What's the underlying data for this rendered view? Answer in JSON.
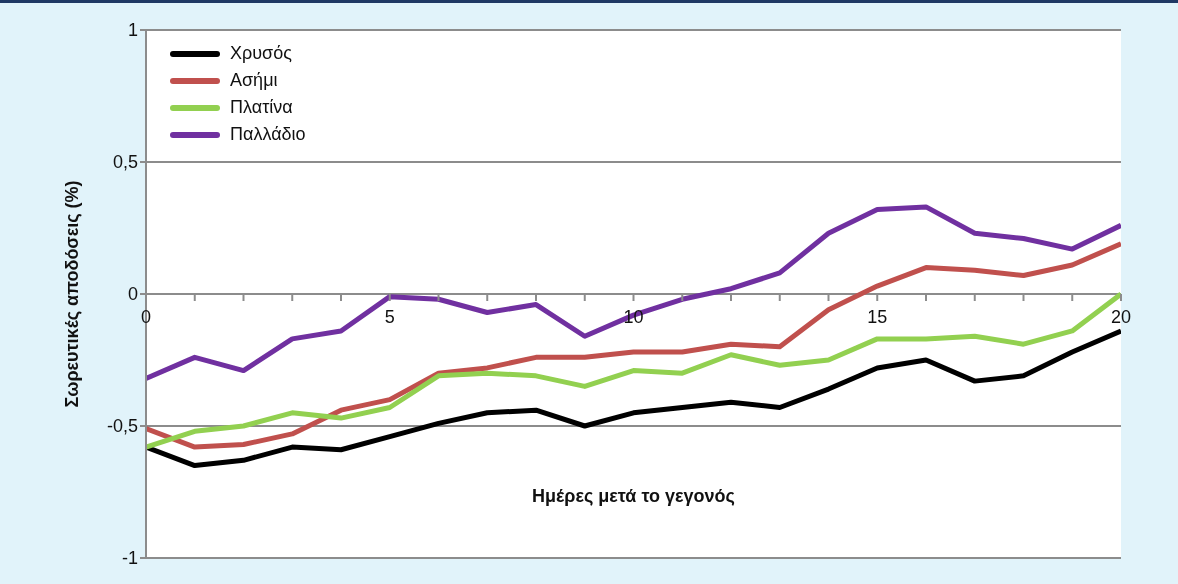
{
  "chart_data": {
    "type": "line",
    "xlabel": "Ημέρες μετά το γεγονός",
    "ylabel": "Σωρευτικές αποδόσεις (%)",
    "x": [
      0,
      1,
      2,
      3,
      4,
      5,
      6,
      7,
      8,
      9,
      10,
      11,
      12,
      13,
      14,
      15,
      16,
      17,
      18,
      19,
      20
    ],
    "series": [
      {
        "name": "Χρυσός",
        "color": "#000000",
        "values": [
          -0.58,
          -0.65,
          -0.63,
          -0.58,
          -0.59,
          -0.54,
          -0.49,
          -0.45,
          -0.44,
          -0.5,
          -0.45,
          -0.43,
          -0.41,
          -0.43,
          -0.36,
          -0.28,
          -0.25,
          -0.33,
          -0.31,
          -0.22,
          -0.14
        ]
      },
      {
        "name": "Ασήμι",
        "color": "#c0504d",
        "values": [
          -0.51,
          -0.58,
          -0.57,
          -0.53,
          -0.44,
          -0.4,
          -0.3,
          -0.28,
          -0.24,
          -0.24,
          -0.22,
          -0.22,
          -0.19,
          -0.2,
          -0.06,
          0.03,
          0.1,
          0.09,
          0.07,
          0.11,
          0.19
        ]
      },
      {
        "name": "Πλατίνα",
        "color": "#92d050",
        "values": [
          -0.58,
          -0.52,
          -0.5,
          -0.45,
          -0.47,
          -0.43,
          -0.31,
          -0.3,
          -0.31,
          -0.35,
          -0.29,
          -0.3,
          -0.23,
          -0.27,
          -0.25,
          -0.17,
          -0.17,
          -0.16,
          -0.19,
          -0.14,
          0
        ]
      },
      {
        "name": "Παλλάδιο",
        "color": "#7030a0",
        "values": [
          -0.32,
          -0.24,
          -0.29,
          -0.17,
          -0.14,
          -0.01,
          -0.02,
          -0.07,
          -0.04,
          -0.16,
          -0.08,
          -0.02,
          0.02,
          0.08,
          0.23,
          0.32,
          0.33,
          0.23,
          0.21,
          0.17,
          0.26
        ]
      }
    ],
    "xlim": [
      0,
      20
    ],
    "xticks": [
      0,
      {
        "value": 1,
        "label": null
      },
      {
        "value": 2,
        "label": null
      },
      {
        "value": 3,
        "label": null
      },
      {
        "value": 4,
        "label": null
      },
      5,
      {
        "value": 6,
        "label": null
      },
      {
        "value": 7,
        "label": null
      },
      {
        "value": 8,
        "label": null
      },
      {
        "value": 9,
        "label": null
      },
      10,
      {
        "value": 11,
        "label": null
      },
      {
        "value": 12,
        "label": null
      },
      {
        "value": 13,
        "label": null
      },
      {
        "value": 14,
        "label": null
      },
      15,
      {
        "value": 16,
        "label": null
      },
      {
        "value": 17,
        "label": null
      },
      {
        "value": 18,
        "label": null
      },
      {
        "value": 19,
        "label": null
      },
      20
    ],
    "ylim": [
      -1,
      1
    ],
    "yticks": [
      {
        "value": -1,
        "label": "-1"
      },
      {
        "value": -0.5,
        "label": "-0,5"
      },
      {
        "value": 0,
        "label": "0"
      },
      {
        "value": 0.5,
        "label": "0,5"
      },
      {
        "value": 1,
        "label": "1"
      }
    ],
    "grid": "y",
    "legend": "top left"
  }
}
